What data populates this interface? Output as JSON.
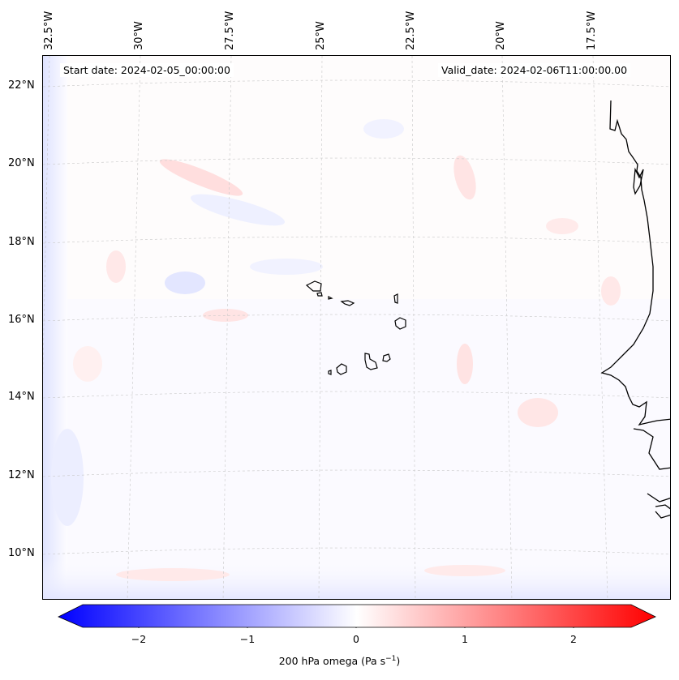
{
  "map": {
    "start_date": "Start date: 2024-02-05_00:00:00",
    "valid_date": "Valid_date: 2024-02-06T11:00:00.00",
    "lon_labels": [
      "32.5°W",
      "30°W",
      "27.5°W",
      "25°W",
      "22.5°W",
      "20°W",
      "17.5°W"
    ],
    "lat_labels": [
      "22°N",
      "20°N",
      "18°N",
      "16°N",
      "14°N",
      "12°N",
      "10°N"
    ],
    "field_colors": {
      "negative": "#e6e8ff",
      "positive": "#ffe4e4",
      "neutral": "#fdfcff"
    }
  },
  "colorbar": {
    "label_prefix": "200 hPa omega (Pa s",
    "label_exp": "−1",
    "label_suffix": ")",
    "ticks": [
      "−2",
      "−1",
      "0",
      "1",
      "2"
    ],
    "min_color": "#0000ff",
    "mid_color": "#ffffff",
    "max_color": "#ff0000"
  }
}
